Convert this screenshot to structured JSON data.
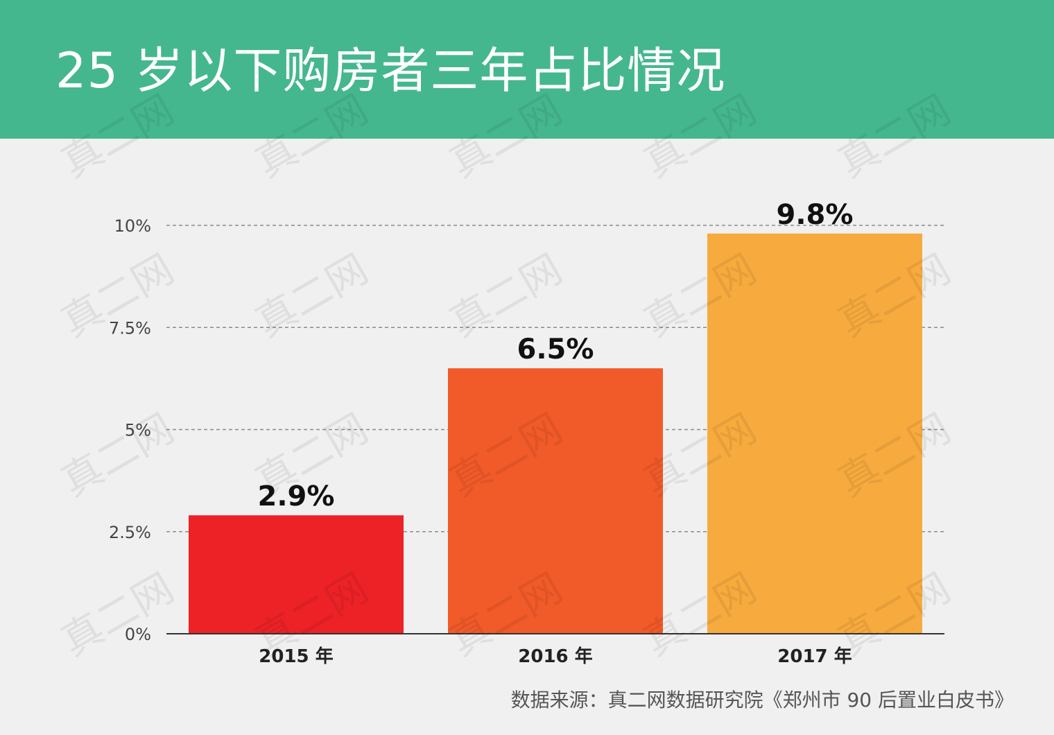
{
  "title": "25 岁以下购房者三年占比情况",
  "source": "数据来源：真二网数据研究院《郑州市 90 后置业白皮书》",
  "watermark": "真二网",
  "colors": {
    "header": "#45b78f",
    "bar_2015": "#ec2227",
    "bar_2016": "#f15a29",
    "bar_2017": "#f7ab3e"
  },
  "chart_data": {
    "type": "bar",
    "categories": [
      "2015 年",
      "2016 年",
      "2017 年"
    ],
    "values": [
      2.9,
      6.5,
      9.8
    ],
    "value_labels": [
      "2.9%",
      "6.5%",
      "9.8%"
    ],
    "colors": [
      "#ec2227",
      "#f15a29",
      "#f7ab3e"
    ],
    "yticks": [
      0,
      2.5,
      5,
      7.5,
      10
    ],
    "ytick_labels": [
      "0%",
      "2.5%",
      "5%",
      "7.5%",
      "10%"
    ],
    "ylim": [
      0,
      10
    ],
    "grid": "dashed horizontal",
    "xlabel": "",
    "ylabel": ""
  }
}
